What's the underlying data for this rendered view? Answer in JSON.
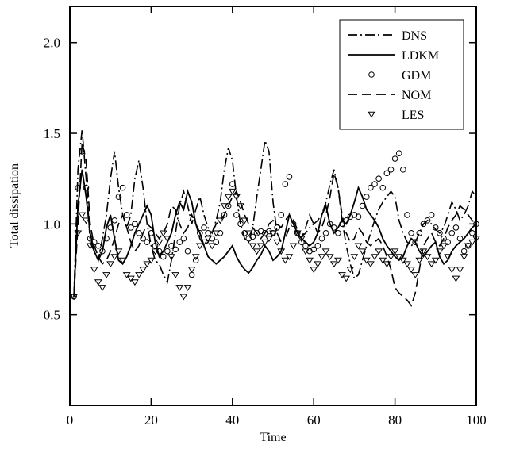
{
  "chart_data": {
    "type": "line",
    "title": "",
    "xlabel": "Time",
    "ylabel": "Total dissipation",
    "xlim": [
      0,
      100
    ],
    "ylim": [
      0,
      2.2
    ],
    "xticks": [
      0,
      20,
      40,
      60,
      80,
      100
    ],
    "xtick_labels": [
      "0",
      "20",
      "40",
      "60",
      "80",
      "100"
    ],
    "yticks": [
      0.5,
      1.0,
      1.5,
      2.0
    ],
    "ytick_labels": [
      "0.5",
      "1.0",
      "1.5",
      "2.0"
    ],
    "grid": false,
    "legend_position": "top-right",
    "series": [
      {
        "name": "DNS",
        "style": "dash-dot",
        "x": [
          1,
          2,
          3,
          4,
          5,
          6,
          7,
          8,
          9,
          10,
          11,
          12,
          13,
          14,
          15,
          16,
          17,
          18,
          19,
          20,
          21,
          22,
          23,
          24,
          25,
          26,
          27,
          28,
          29,
          30,
          31,
          32,
          33,
          34,
          35,
          36,
          37,
          38,
          39,
          40,
          41,
          42,
          43,
          44,
          45,
          46,
          47,
          48,
          49,
          50,
          51,
          52,
          53,
          54,
          55,
          56,
          57,
          58,
          59,
          60,
          61,
          62,
          63,
          64,
          65,
          66,
          67,
          68,
          69,
          70,
          71,
          72,
          73,
          74,
          75,
          76,
          77,
          78,
          79,
          80,
          81,
          82,
          83,
          84,
          85,
          86,
          87,
          88,
          89,
          90,
          91,
          92,
          93,
          94,
          95,
          96,
          97,
          98,
          99,
          100
        ],
        "y": [
          0.6,
          1.3,
          1.52,
          1.25,
          0.9,
          0.85,
          0.8,
          0.92,
          1.05,
          1.25,
          1.4,
          1.2,
          1.05,
          0.98,
          1.05,
          1.25,
          1.35,
          1.2,
          1.0,
          0.88,
          0.8,
          0.78,
          0.72,
          0.68,
          0.8,
          0.95,
          1.1,
          1.18,
          1.1,
          1.0,
          1.08,
          1.15,
          1.05,
          0.98,
          0.95,
          1.02,
          1.12,
          1.3,
          1.42,
          1.35,
          1.15,
          1.0,
          0.92,
          0.9,
          0.98,
          1.15,
          1.3,
          1.46,
          1.4,
          1.12,
          0.95,
          0.9,
          0.92,
          0.98,
          1.02,
          0.97,
          0.93,
          0.95,
          0.98,
          1.0,
          1.02,
          1.05,
          1.12,
          1.22,
          1.3,
          1.2,
          1.02,
          0.88,
          0.78,
          0.7,
          0.72,
          0.8,
          0.88,
          0.95,
          1.02,
          1.08,
          1.12,
          1.15,
          1.18,
          1.15,
          1.02,
          0.95,
          0.9,
          0.88,
          0.9,
          0.95,
          1.0,
          1.02,
          1.0,
          0.97,
          0.95,
          0.98,
          1.05,
          1.12,
          1.08,
          1.02,
          1.05,
          1.1,
          1.18,
          1.15
        ]
      },
      {
        "name": "LDKM",
        "style": "solid",
        "x": [
          1,
          2,
          3,
          4,
          5,
          6,
          7,
          8,
          9,
          10,
          11,
          12,
          13,
          14,
          15,
          16,
          17,
          18,
          19,
          20,
          21,
          22,
          23,
          24,
          25,
          26,
          27,
          28,
          29,
          30,
          31,
          32,
          33,
          34,
          35,
          36,
          37,
          38,
          39,
          40,
          41,
          42,
          43,
          44,
          45,
          46,
          47,
          48,
          49,
          50,
          51,
          52,
          53,
          54,
          55,
          56,
          57,
          58,
          59,
          60,
          61,
          62,
          63,
          64,
          65,
          66,
          67,
          68,
          69,
          70,
          71,
          72,
          73,
          74,
          75,
          76,
          77,
          78,
          79,
          80,
          81,
          82,
          83,
          84,
          85,
          86,
          87,
          88,
          89,
          90,
          91,
          92,
          93,
          94,
          95,
          96,
          97,
          98,
          99,
          100
        ],
        "y": [
          0.6,
          1.1,
          1.3,
          1.15,
          0.95,
          0.85,
          0.8,
          0.85,
          0.98,
          1.05,
          0.92,
          0.8,
          0.78,
          0.82,
          0.88,
          0.95,
          1.0,
          1.05,
          1.1,
          1.05,
          0.9,
          0.82,
          0.85,
          0.9,
          0.95,
          1.05,
          1.12,
          1.08,
          1.18,
          1.12,
          1.0,
          0.95,
          0.88,
          0.82,
          0.8,
          0.78,
          0.8,
          0.82,
          0.85,
          0.88,
          0.82,
          0.78,
          0.75,
          0.73,
          0.76,
          0.8,
          0.83,
          0.88,
          0.85,
          0.8,
          0.82,
          0.85,
          0.95,
          1.05,
          1.0,
          0.95,
          0.92,
          0.9,
          0.88,
          0.9,
          0.95,
          1.05,
          1.1,
          1.0,
          0.95,
          0.98,
          1.02,
          1.0,
          1.05,
          1.12,
          1.2,
          1.15,
          1.08,
          1.05,
          1.02,
          0.98,
          0.92,
          0.88,
          0.85,
          0.82,
          0.8,
          0.82,
          0.88,
          0.92,
          0.9,
          0.85,
          0.82,
          0.85,
          0.88,
          0.9,
          0.82,
          0.78,
          0.8,
          0.85,
          0.88,
          0.9,
          0.92,
          0.95,
          0.98,
          1.0
        ]
      },
      {
        "name": "GDM",
        "style": "circle",
        "x": [
          1,
          2,
          3,
          4,
          5,
          6,
          7,
          8,
          9,
          10,
          11,
          12,
          13,
          14,
          15,
          16,
          17,
          18,
          19,
          20,
          21,
          22,
          23,
          24,
          25,
          26,
          27,
          28,
          29,
          30,
          31,
          32,
          33,
          34,
          35,
          36,
          37,
          38,
          39,
          40,
          41,
          42,
          43,
          44,
          45,
          46,
          47,
          48,
          49,
          50,
          51,
          52,
          53,
          54,
          55,
          56,
          57,
          58,
          59,
          60,
          61,
          62,
          63,
          64,
          65,
          66,
          67,
          68,
          69,
          70,
          71,
          72,
          73,
          74,
          75,
          76,
          77,
          78,
          79,
          80,
          81,
          82,
          83,
          84,
          85,
          86,
          87,
          88,
          89,
          90,
          91,
          92,
          93,
          94,
          95,
          96,
          97,
          98,
          99,
          100
        ],
        "y": [
          0.6,
          1.2,
          1.4,
          1.2,
          0.92,
          0.9,
          0.88,
          0.85,
          0.92,
          0.98,
          1.02,
          1.15,
          1.2,
          1.05,
          0.98,
          1.0,
          0.95,
          0.92,
          0.9,
          0.95,
          0.88,
          0.85,
          0.82,
          0.85,
          0.88,
          0.86,
          0.9,
          0.92,
          0.85,
          0.72,
          0.8,
          0.95,
          0.98,
          0.95,
          0.92,
          0.9,
          0.95,
          1.05,
          1.1,
          1.22,
          1.05,
          1.0,
          0.95,
          0.92,
          0.93,
          0.95,
          0.96,
          0.95,
          0.96,
          0.95,
          0.98,
          1.05,
          1.22,
          1.26,
          1.0,
          0.95,
          0.9,
          0.88,
          0.85,
          0.86,
          0.88,
          0.92,
          0.95,
          1.0,
          0.98,
          0.95,
          1.0,
          1.02,
          1.04,
          1.05,
          1.04,
          1.1,
          1.15,
          1.2,
          1.22,
          1.25,
          1.2,
          1.28,
          1.3,
          1.36,
          1.39,
          1.3,
          1.05,
          0.95,
          0.9,
          0.95,
          1.0,
          1.02,
          1.05,
          0.98,
          0.95,
          0.92,
          0.9,
          0.95,
          0.98,
          0.92,
          0.85,
          0.88,
          0.95,
          1.0
        ]
      },
      {
        "name": "NOM",
        "style": "dashed",
        "x": [
          1,
          2,
          3,
          4,
          5,
          6,
          7,
          8,
          9,
          10,
          11,
          12,
          13,
          14,
          15,
          16,
          17,
          18,
          19,
          20,
          21,
          22,
          23,
          24,
          25,
          26,
          27,
          28,
          29,
          30,
          31,
          32,
          33,
          34,
          35,
          36,
          37,
          38,
          39,
          40,
          41,
          42,
          43,
          44,
          45,
          46,
          47,
          48,
          49,
          50,
          51,
          52,
          53,
          54,
          55,
          56,
          57,
          58,
          59,
          60,
          61,
          62,
          63,
          64,
          65,
          66,
          67,
          68,
          69,
          70,
          71,
          72,
          73,
          74,
          75,
          76,
          77,
          78,
          79,
          80,
          81,
          82,
          83,
          84,
          85,
          86,
          87,
          88,
          89,
          90,
          91,
          92,
          93,
          94,
          95,
          96,
          97,
          98,
          99,
          100
        ],
        "y": [
          0.6,
          1.0,
          1.45,
          1.35,
          1.0,
          0.88,
          0.82,
          0.78,
          0.8,
          0.85,
          0.92,
          1.0,
          1.05,
          0.98,
          0.9,
          0.85,
          0.88,
          0.95,
          1.0,
          0.98,
          0.95,
          0.92,
          0.95,
          1.0,
          1.1,
          1.08,
          1.0,
          0.95,
          0.98,
          1.05,
          1.0,
          0.92,
          0.88,
          0.9,
          0.95,
          1.0,
          1.02,
          1.05,
          1.1,
          1.15,
          1.18,
          1.12,
          1.05,
          1.0,
          0.98,
          0.95,
          0.92,
          0.95,
          1.0,
          1.02,
          1.0,
          0.98,
          1.02,
          1.05,
          1.0,
          0.95,
          0.92,
          0.98,
          1.05,
          1.0,
          0.95,
          0.98,
          1.05,
          1.15,
          1.28,
          1.2,
          1.05,
          0.95,
          0.9,
          0.92,
          0.98,
          0.95,
          0.9,
          0.88,
          0.9,
          0.92,
          0.88,
          0.82,
          0.75,
          0.65,
          0.62,
          0.6,
          0.58,
          0.55,
          0.62,
          0.75,
          0.88,
          0.92,
          0.95,
          0.9,
          0.88,
          0.92,
          0.98,
          1.02,
          1.05,
          1.1,
          1.08,
          1.05,
          1.02,
          1.0
        ]
      },
      {
        "name": "LES",
        "style": "triangle-down",
        "x": [
          1,
          2,
          3,
          4,
          5,
          6,
          7,
          8,
          9,
          10,
          11,
          12,
          13,
          14,
          15,
          16,
          17,
          18,
          19,
          20,
          21,
          22,
          23,
          24,
          25,
          26,
          27,
          28,
          29,
          30,
          31,
          32,
          33,
          34,
          35,
          36,
          37,
          38,
          39,
          40,
          41,
          42,
          43,
          44,
          45,
          46,
          47,
          48,
          49,
          50,
          51,
          52,
          53,
          54,
          55,
          56,
          57,
          58,
          59,
          60,
          61,
          62,
          63,
          64,
          65,
          66,
          67,
          68,
          69,
          70,
          71,
          72,
          73,
          74,
          75,
          76,
          77,
          78,
          79,
          80,
          81,
          82,
          83,
          84,
          85,
          86,
          87,
          88,
          89,
          90,
          91,
          92,
          93,
          94,
          95,
          96,
          97,
          98,
          99,
          100
        ],
        "y": [
          0.6,
          0.95,
          1.05,
          1.02,
          0.88,
          0.75,
          0.68,
          0.65,
          0.72,
          0.78,
          0.82,
          0.85,
          0.8,
          0.72,
          0.7,
          0.68,
          0.72,
          0.75,
          0.78,
          0.8,
          0.85,
          0.9,
          0.95,
          0.92,
          0.82,
          0.72,
          0.65,
          0.6,
          0.65,
          0.75,
          0.82,
          0.88,
          0.9,
          0.92,
          0.88,
          0.95,
          1.02,
          1.1,
          1.15,
          1.18,
          1.15,
          1.1,
          1.02,
          0.95,
          0.88,
          0.85,
          0.88,
          0.9,
          0.92,
          0.95,
          0.9,
          0.85,
          0.8,
          0.82,
          0.88,
          0.95,
          0.92,
          0.85,
          0.8,
          0.75,
          0.78,
          0.82,
          0.85,
          0.82,
          0.78,
          0.8,
          0.72,
          0.7,
          0.75,
          0.82,
          0.88,
          0.85,
          0.8,
          0.78,
          0.82,
          0.85,
          0.8,
          0.78,
          0.82,
          0.85,
          0.82,
          0.8,
          0.78,
          0.75,
          0.72,
          0.8,
          0.85,
          0.82,
          0.78,
          0.8,
          0.85,
          0.88,
          0.82,
          0.75,
          0.7,
          0.75,
          0.82,
          0.88,
          0.9,
          0.92
        ]
      }
    ]
  }
}
